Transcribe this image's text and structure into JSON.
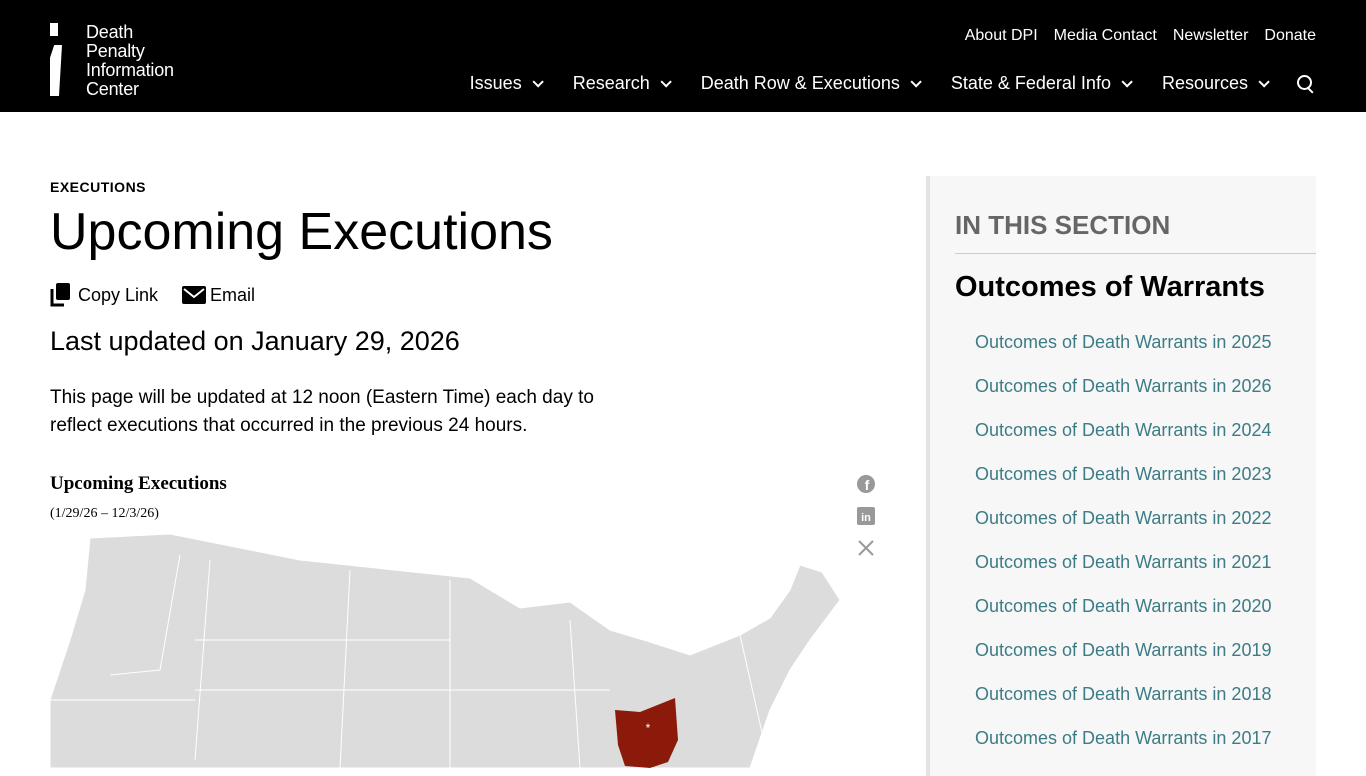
{
  "header": {
    "logo_lines": [
      "Death",
      "Penalty",
      "Information",
      "Center"
    ],
    "utility": [
      "About DPI",
      "Media Contact",
      "Newsletter",
      "Donate"
    ],
    "nav": [
      "Issues",
      "Research",
      "Death Row & Executions",
      "State & Federal Info",
      "Resources"
    ]
  },
  "page": {
    "eyebrow": "EXECUTIONS",
    "title": "Upcoming Executions",
    "copy_link": "Copy Link",
    "email": "Email",
    "updated": "Last updated on January 29, 2026",
    "note": "This page will be updated at 12 noon (Eastern Time) each day to reflect executions that occurred in the previous 24 hours."
  },
  "map": {
    "title": "Upcoming Executions",
    "subtitle": "(1/29/26 – 12/3/26)",
    "highlight_color": "#8b1a0a",
    "base_color": "#dcdcdc",
    "highlighted_states": [
      "Ohio"
    ],
    "marker": "*"
  },
  "aside": {
    "section": "IN THIS SECTION",
    "heading": "Outcomes of Warrants",
    "links": [
      "Outcomes of Death Warrants in 2025",
      "Outcomes of Death Warrants in 2026",
      "Outcomes of Death Warrants in 2024",
      "Outcomes of Death Warrants in 2023",
      "Outcomes of Death Warrants in 2022",
      "Outcomes of Death Warrants in 2021",
      "Outcomes of Death Warrants in 2020",
      "Outcomes of Death Warrants in 2019",
      "Outcomes of Death Warrants in 2018",
      "Outcomes of Death Warrants in 2017"
    ]
  }
}
